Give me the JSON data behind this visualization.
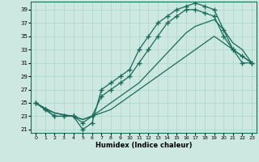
{
  "xlabel": "Humidex (Indice chaleur)",
  "xlim": [
    -0.5,
    23.5
  ],
  "ylim": [
    20.5,
    40.2
  ],
  "xticks": [
    0,
    1,
    2,
    3,
    4,
    5,
    6,
    7,
    8,
    9,
    10,
    11,
    12,
    13,
    14,
    15,
    16,
    17,
    18,
    19,
    20,
    21,
    22,
    23
  ],
  "yticks": [
    21,
    23,
    25,
    27,
    29,
    31,
    33,
    35,
    37,
    39
  ],
  "bg_color": "#cce8e0",
  "line_color": "#1a6b5a",
  "grid_color": "#aad4cc",
  "line1_x": [
    0,
    1,
    2,
    3,
    4,
    5,
    6,
    7,
    8,
    9,
    10,
    11,
    12,
    13,
    14,
    15,
    16,
    17,
    18,
    19,
    20,
    21,
    22,
    23
  ],
  "line1_y": [
    25,
    24,
    23,
    23,
    23,
    21,
    22,
    27,
    28,
    29,
    30,
    33,
    35,
    37,
    38,
    39,
    39.5,
    40,
    39.5,
    39,
    36,
    33,
    31,
    31
  ],
  "line2_x": [
    0,
    1,
    2,
    3,
    4,
    5,
    6,
    7,
    8,
    9,
    10,
    11,
    12,
    13,
    14,
    15,
    16,
    17,
    18,
    19,
    20,
    21,
    22,
    23
  ],
  "line2_y": [
    25,
    24,
    23,
    23,
    23,
    22,
    23,
    26,
    27,
    28,
    29,
    31,
    33,
    35,
    37,
    38,
    39,
    39,
    38.5,
    38,
    35,
    33,
    32,
    31
  ],
  "line3_x": [
    0,
    1,
    2,
    3,
    4,
    5,
    6,
    7,
    8,
    9,
    10,
    11,
    12,
    13,
    14,
    15,
    16,
    17,
    18,
    19,
    20,
    21,
    22,
    23
  ],
  "line3_y": [
    25,
    24.2,
    23.5,
    23.2,
    23,
    22.5,
    23,
    23.5,
    24,
    25,
    26,
    27,
    28,
    29,
    30,
    31,
    32,
    33,
    34,
    35,
    34,
    33,
    32,
    31
  ],
  "line4_x": [
    0,
    1,
    2,
    3,
    4,
    5,
    6,
    7,
    8,
    9,
    10,
    11,
    12,
    13,
    14,
    15,
    16,
    17,
    18,
    19,
    20,
    21,
    22,
    23
  ],
  "line4_y": [
    25,
    24,
    23.5,
    23.2,
    23,
    22.5,
    23,
    24,
    25,
    26,
    27,
    28,
    29.5,
    31,
    32.5,
    34,
    35.5,
    36.5,
    37,
    37.5,
    36,
    34,
    33,
    31
  ]
}
